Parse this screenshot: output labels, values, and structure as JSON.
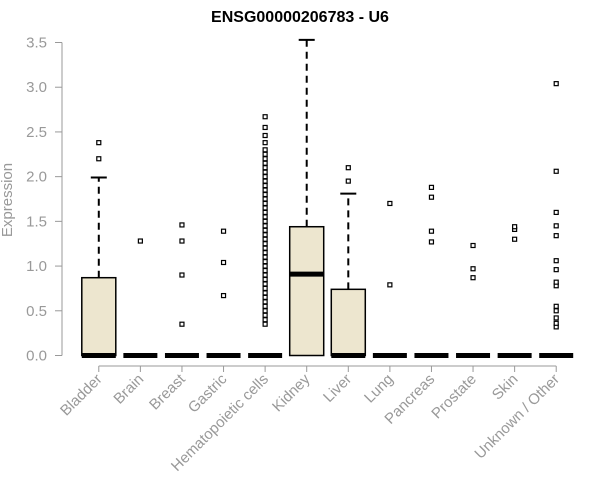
{
  "chart_data": {
    "type": "box",
    "title": "ENSG00000206783 - U6",
    "xlabel": "",
    "ylabel": "Expression",
    "ylim": [
      0,
      3.55
    ],
    "yticks": [
      "0.0",
      "0.5",
      "1.0",
      "1.5",
      "2.0",
      "2.5",
      "3.0",
      "3.5"
    ],
    "grid": false,
    "colors": {
      "box_fill": "#ede6cf",
      "stroke": "#000000",
      "axis": "#999999"
    },
    "categories": [
      "Bladder",
      "Brain",
      "Breast",
      "Gastric",
      "Hematopoietic cells",
      "Kidney",
      "Liver",
      "Lung",
      "Pancreas",
      "Prostate",
      "Skin",
      "Unknown / Other"
    ],
    "boxes": [
      {
        "name": "Bladder",
        "q1": 0,
        "median": 0,
        "q3": 0.87,
        "whisker_low": 0,
        "whisker_high": 1.99,
        "outliers": [
          2.2,
          2.38
        ]
      },
      {
        "name": "Brain",
        "q1": 0,
        "median": 0,
        "q3": 0,
        "whisker_low": 0,
        "whisker_high": 0,
        "outliers": [
          1.28
        ]
      },
      {
        "name": "Breast",
        "q1": 0,
        "median": 0,
        "q3": 0,
        "whisker_low": 0,
        "whisker_high": 0,
        "outliers": [
          0.35,
          0.9,
          1.28,
          1.46
        ]
      },
      {
        "name": "Gastric",
        "q1": 0,
        "median": 0,
        "q3": 0,
        "whisker_low": 0,
        "whisker_high": 0,
        "outliers": [
          0.67,
          1.04,
          1.39
        ]
      },
      {
        "name": "Hematopoietic cells",
        "q1": 0,
        "median": 0,
        "q3": 0,
        "whisker_low": 0,
        "whisker_high": 0,
        "outliers": [
          0.35,
          0.4,
          0.45,
          0.5,
          0.55,
          0.6,
          0.65,
          0.7,
          0.75,
          0.8,
          0.85,
          0.9,
          0.95,
          1.0,
          1.05,
          1.1,
          1.15,
          1.2,
          1.25,
          1.3,
          1.35,
          1.4,
          1.45,
          1.5,
          1.55,
          1.6,
          1.65,
          1.7,
          1.75,
          1.8,
          1.85,
          1.9,
          1.95,
          2.0,
          2.05,
          2.1,
          2.15,
          2.2,
          2.25,
          2.3,
          2.38,
          2.46,
          2.55,
          2.67
        ]
      },
      {
        "name": "Kidney",
        "q1": 0,
        "median": 0.91,
        "q3": 1.44,
        "whisker_low": 0,
        "whisker_high": 3.53,
        "outliers": []
      },
      {
        "name": "Liver",
        "q1": 0,
        "median": 0,
        "q3": 0.74,
        "whisker_low": 0,
        "whisker_high": 1.81,
        "outliers": [
          1.95,
          2.1
        ]
      },
      {
        "name": "Lung",
        "q1": 0,
        "median": 0,
        "q3": 0,
        "whisker_low": 0,
        "whisker_high": 0,
        "outliers": [
          0.79,
          1.7
        ]
      },
      {
        "name": "Pancreas",
        "q1": 0,
        "median": 0,
        "q3": 0,
        "whisker_low": 0,
        "whisker_high": 0,
        "outliers": [
          1.27,
          1.39,
          1.77,
          1.88
        ]
      },
      {
        "name": "Prostate",
        "q1": 0,
        "median": 0,
        "q3": 0,
        "whisker_low": 0,
        "whisker_high": 0,
        "outliers": [
          0.87,
          0.97,
          1.23
        ]
      },
      {
        "name": "Skin",
        "q1": 0,
        "median": 0,
        "q3": 0,
        "whisker_low": 0,
        "whisker_high": 0,
        "outliers": [
          1.3,
          1.41,
          1.44
        ]
      },
      {
        "name": "Unknown / Other",
        "q1": 0,
        "median": 0,
        "q3": 0,
        "whisker_low": 0,
        "whisker_high": 0,
        "outliers": [
          0.32,
          0.36,
          0.42,
          0.5,
          0.55,
          0.78,
          0.82,
          0.96,
          1.06,
          1.34,
          1.45,
          1.6,
          2.06,
          3.04
        ]
      }
    ]
  }
}
